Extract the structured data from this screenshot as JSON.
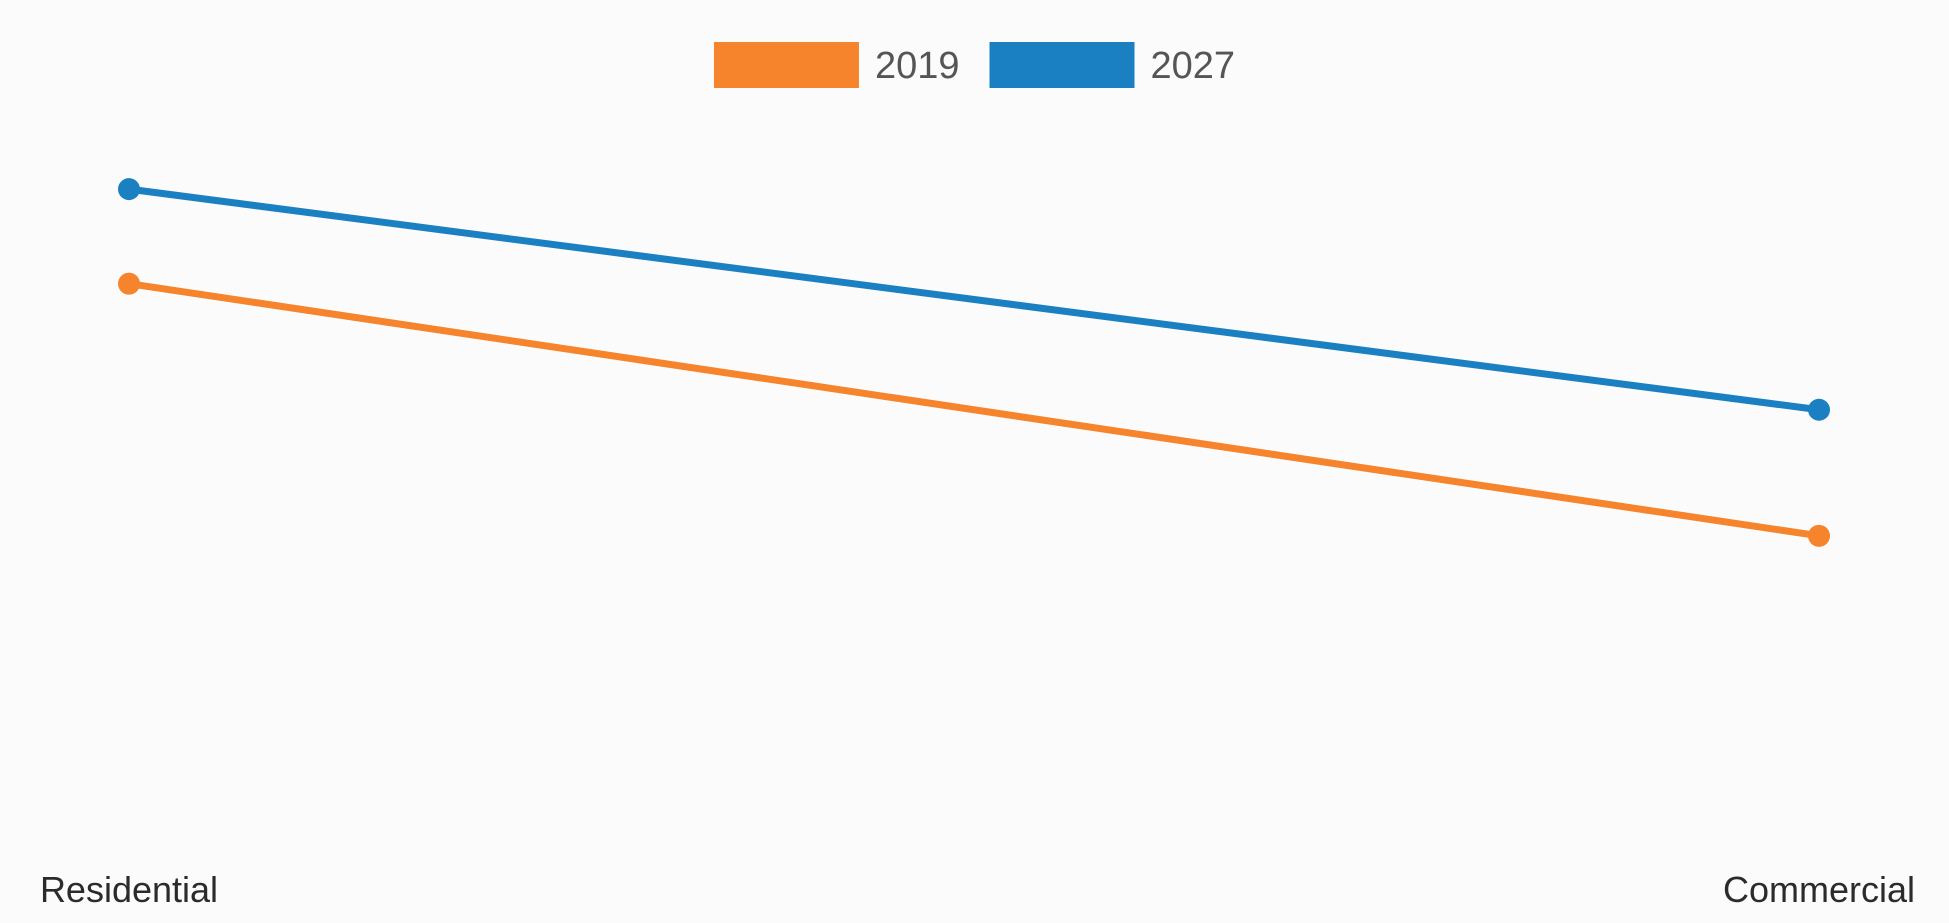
{
  "chart_data": {
    "type": "line",
    "categories": [
      "Residential",
      "Commercial"
    ],
    "series": [
      {
        "name": "2019",
        "values": [
          64,
          32
        ],
        "color": "#f5842c"
      },
      {
        "name": "2027",
        "values": [
          76,
          48
        ],
        "color": "#1a80c2"
      }
    ],
    "ylim": [
      0,
      100
    ],
    "grid": false,
    "legend_position": "top-center",
    "title": "",
    "xlabel": "",
    "ylabel": ""
  }
}
